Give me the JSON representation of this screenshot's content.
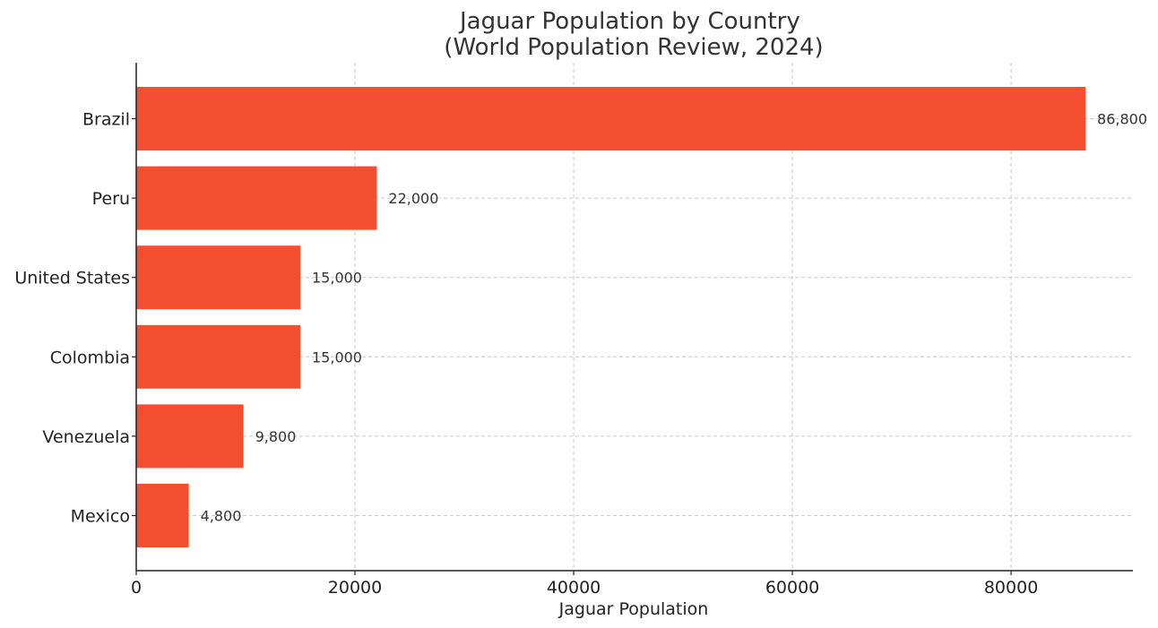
{
  "chart_data": {
    "type": "bar",
    "orientation": "horizontal",
    "title": "Jaguar Population by Country\n(World Population Review, 2024)",
    "title_lines": [
      "Jaguar Population by Country",
      "(World Population Review, 2024)"
    ],
    "xlabel": "Jaguar Population",
    "ylabel": "",
    "categories": [
      "Brazil",
      "Peru",
      "United States",
      "Colombia",
      "Venezuela",
      "Mexico"
    ],
    "values": [
      86800,
      22000,
      15000,
      15000,
      9800,
      4800
    ],
    "value_labels": [
      "86,800",
      "22,000",
      "15,000",
      "15,000",
      "9,800",
      "4,800"
    ],
    "xlim": [
      0,
      91140
    ],
    "xticks": [
      0,
      20000,
      40000,
      60000,
      80000
    ],
    "xtick_labels": [
      "0",
      "20000",
      "40000",
      "60000",
      "80000"
    ],
    "grid": true,
    "grid_style": "dashed",
    "bar_color": "#F44E30",
    "legend": "none"
  }
}
